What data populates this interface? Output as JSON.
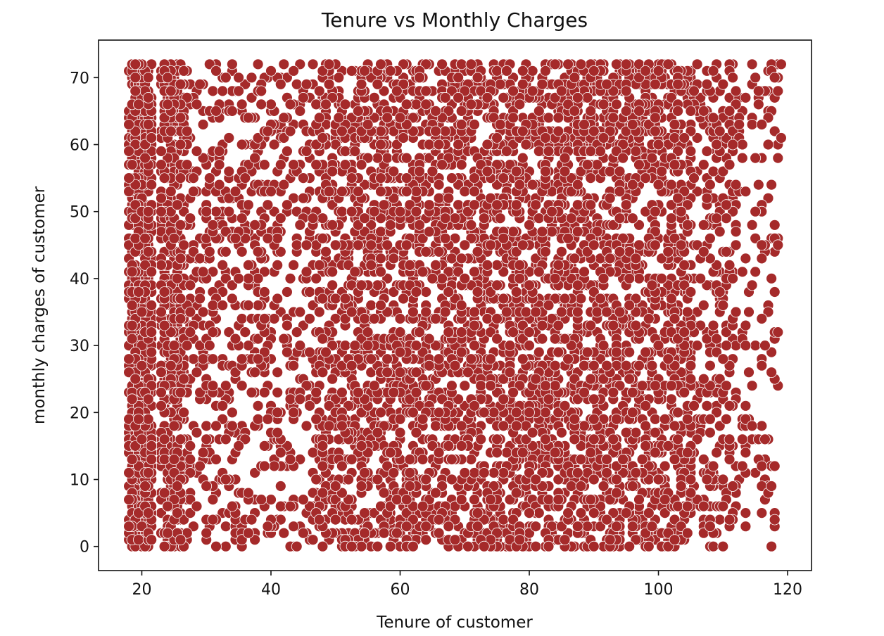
{
  "chart_data": {
    "type": "scatter",
    "title": "Tenure vs Monthly Charges",
    "xlabel": "Tenure of customer",
    "ylabel": "monthly charges of customer",
    "xlim": [
      13.3,
      123.7
    ],
    "ylim": [
      -3.6,
      75.6
    ],
    "xticks": [
      20,
      40,
      60,
      80,
      100,
      120
    ],
    "yticks": [
      0,
      10,
      20,
      30,
      40,
      50,
      60,
      70
    ],
    "grid": false,
    "legend": "none",
    "marker_color": "#a52a2a",
    "marker_edge_color": "#ffffff",
    "x_range": [
      18,
      119
    ],
    "y_range": [
      0,
      72
    ],
    "x_step": 0.5,
    "y_step": 1,
    "point_count_estimate": 7000,
    "sample_points": [
      [
        18,
        59
      ],
      [
        18,
        28
      ],
      [
        19,
        72
      ],
      [
        20,
        35
      ],
      [
        21,
        5
      ],
      [
        24,
        70
      ],
      [
        25,
        30
      ],
      [
        26,
        1
      ],
      [
        29,
        37
      ],
      [
        30,
        50
      ],
      [
        31,
        28
      ],
      [
        35,
        40
      ],
      [
        38,
        72
      ],
      [
        42,
        72
      ],
      [
        45,
        55
      ],
      [
        50,
        45
      ],
      [
        55,
        30
      ],
      [
        60,
        50
      ],
      [
        62,
        0
      ],
      [
        70,
        40
      ],
      [
        73,
        0
      ],
      [
        80,
        20
      ],
      [
        81,
        0
      ],
      [
        90,
        45
      ],
      [
        100,
        30
      ],
      [
        105,
        25
      ],
      [
        108,
        3
      ],
      [
        110,
        6
      ],
      [
        110,
        10
      ],
      [
        111,
        21
      ],
      [
        112,
        45
      ],
      [
        113,
        16
      ],
      [
        113,
        12
      ],
      [
        115,
        50
      ],
      [
        116,
        45
      ],
      [
        116,
        34
      ],
      [
        117,
        60
      ],
      [
        118,
        48
      ],
      [
        118,
        70
      ],
      [
        119,
        61
      ],
      [
        119,
        72
      ]
    ]
  },
  "colors": {
    "marker": "#a52a2a",
    "marker_edge": "#ffffff",
    "axes": "#111111",
    "background": "#ffffff"
  }
}
